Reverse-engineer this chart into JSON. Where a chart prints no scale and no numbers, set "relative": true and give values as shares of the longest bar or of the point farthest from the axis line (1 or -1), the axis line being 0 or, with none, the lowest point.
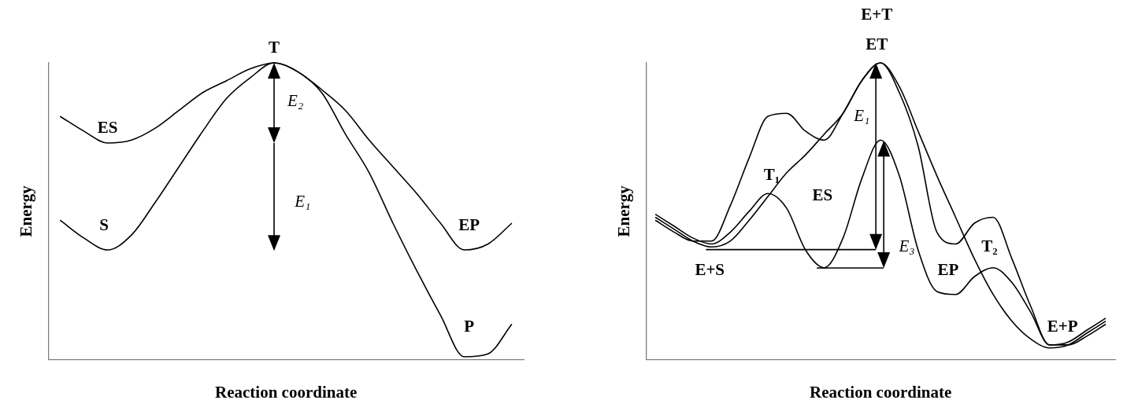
{
  "chart_data": [
    {
      "type": "line",
      "relative": true,
      "xlabel": "Reaction coordinate",
      "ylabel": "Energy",
      "marker": "none",
      "line_style": "solid",
      "categories": [
        null,
        null,
        null,
        null,
        null,
        null,
        null,
        null,
        null,
        null,
        null,
        null,
        null,
        null,
        null,
        null,
        null,
        null,
        null,
        null
      ],
      "series": [
        {
          "color": "#000000",
          "values": [
            0.82,
            0.77,
            0.73,
            0.74,
            0.78,
            0.84,
            0.9,
            0.94,
            0.98,
            1,
            0.97,
            0.91,
            0.84,
            0.74,
            0.65,
            0.56,
            0.46,
            0.37,
            0.39,
            0.46
          ]
        },
        {
          "color": "#000000",
          "values": [
            0.47,
            0.41,
            0.37,
            0.42,
            0.53,
            0.65,
            0.77,
            0.88,
            0.95,
            1,
            0.97,
            0.9,
            0.76,
            0.63,
            0.46,
            0.3,
            0.15,
            0.01,
            0.02,
            0.12
          ]
        }
      ],
      "annotations": [
        "T",
        "ES",
        "S",
        "EP",
        "P",
        "E₂",
        "E₁"
      ]
    },
    {
      "type": "line",
      "relative": true,
      "xlabel": "Reaction coordinate",
      "ylabel": "Energy",
      "marker": "none",
      "line_style": "solid",
      "categories": [
        null,
        null,
        null,
        null,
        null,
        null,
        null,
        null,
        null,
        null,
        null,
        null,
        null,
        null,
        null,
        null,
        null,
        null,
        null,
        null,
        null,
        null,
        null,
        null,
        null
      ],
      "series": [
        {
          "color": "#000000",
          "values": [
            0.48,
            0.44,
            0.4,
            0.38,
            0.4,
            0.47,
            0.55,
            0.63,
            0.69,
            0.76,
            0.83,
            0.94,
            1,
            0.92,
            0.77,
            0.62,
            0.48,
            0.34,
            0.22,
            0.13,
            0.07,
            0.04,
            0.05,
            0.09,
            0.13
          ]
        },
        {
          "color": "#000000",
          "values": [
            0.47,
            0.43,
            0.4,
            0.4,
            0.52,
            0.68,
            0.82,
            0.83,
            0.77,
            0.74,
            0.83,
            0.94,
            1,
            0.9,
            0.72,
            0.43,
            0.39,
            0.46,
            0.48,
            0.34,
            0.18,
            0.05,
            0.05,
            0.08,
            0.12
          ]
        },
        {
          "color": "#000000",
          "values": [
            0.49,
            0.45,
            0.41,
            0.39,
            0.43,
            0.5,
            0.56,
            0.51,
            0.37,
            0.31,
            0.41,
            0.61,
            0.74,
            0.62,
            0.37,
            0.23,
            0.22,
            0.28,
            0.31,
            0.26,
            0.16,
            0.05,
            0.06,
            0.1,
            0.14
          ]
        }
      ],
      "annotations": [
        "E+T",
        "ET",
        "T₁",
        "ES",
        "E₁",
        "E₃",
        "E+S",
        "EP",
        "T₂",
        "E+P"
      ]
    }
  ]
}
